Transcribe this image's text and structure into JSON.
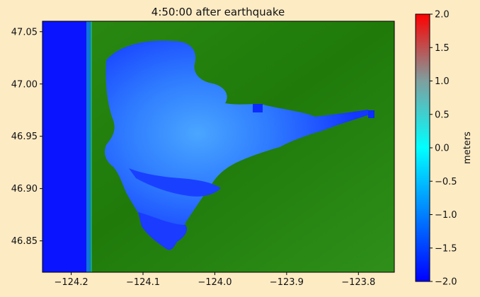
{
  "chart_data": {
    "type": "heatmap",
    "title": "4:50:00 after earthquake",
    "xlabel": "",
    "ylabel": "",
    "xlim": [
      -124.24,
      -123.75
    ],
    "ylim": [
      46.82,
      47.06
    ],
    "x_ticks": [
      {
        "value": -124.2,
        "label": "−124.2"
      },
      {
        "value": -124.1,
        "label": "−124.1"
      },
      {
        "value": -124.0,
        "label": "−124.0"
      },
      {
        "value": -123.9,
        "label": "−123.9"
      },
      {
        "value": -123.8,
        "label": "−123.8"
      }
    ],
    "y_ticks": [
      {
        "value": 47.05,
        "label": "47.05"
      },
      {
        "value": 47.0,
        "label": "47.00"
      },
      {
        "value": 46.95,
        "label": "46.95"
      },
      {
        "value": 46.9,
        "label": "46.90"
      },
      {
        "value": 46.85,
        "label": "46.85"
      }
    ],
    "colorbar": {
      "label": "meters",
      "range": [
        -2.0,
        2.0
      ],
      "ticks": [
        {
          "value": 2.0,
          "label": "2.0"
        },
        {
          "value": 1.5,
          "label": "1.5"
        },
        {
          "value": 1.0,
          "label": "1.0"
        },
        {
          "value": 0.5,
          "label": "0.5"
        },
        {
          "value": 0.0,
          "label": "0.0"
        },
        {
          "value": -0.5,
          "label": "−0.5"
        },
        {
          "value": -1.0,
          "label": "−1.0"
        },
        {
          "value": -1.5,
          "label": "−1.5"
        },
        {
          "value": -2.0,
          "label": "−2.0"
        }
      ],
      "colors": [
        "#0000ff",
        "#00ffff",
        "#ff0000"
      ]
    },
    "land_color": "#1f7a0a",
    "water_color": "#0a2cff",
    "grid": false
  }
}
